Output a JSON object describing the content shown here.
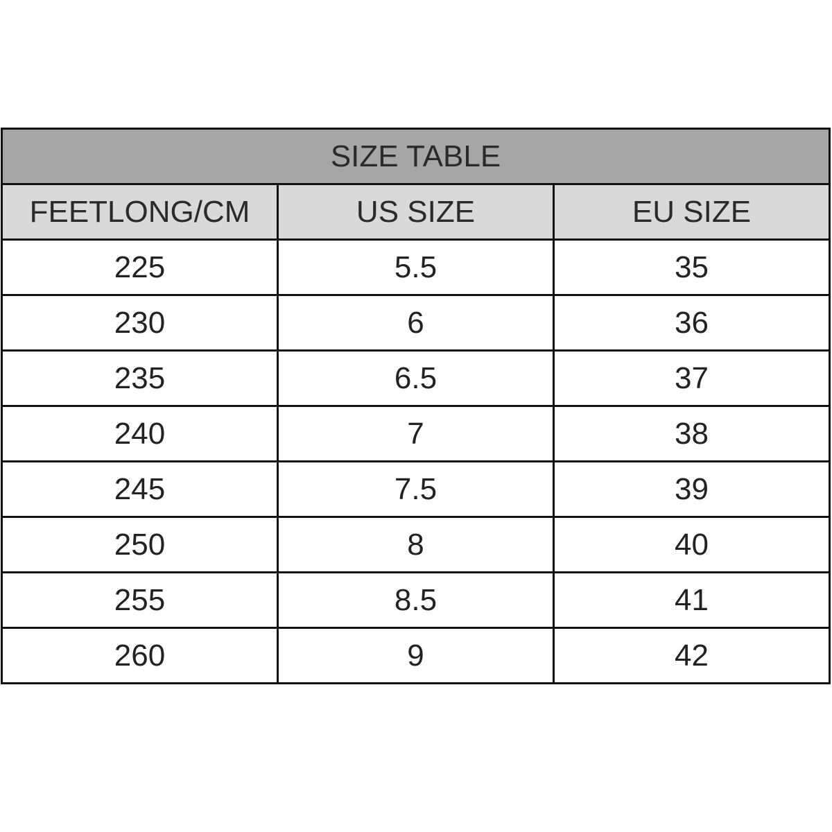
{
  "title": "SIZE TABLE",
  "columns": [
    "FEETLONG/CM",
    "US SIZE",
    "EU SIZE"
  ],
  "rows": [
    [
      "225",
      "5.5",
      "35"
    ],
    [
      "230",
      "6",
      "36"
    ],
    [
      "235",
      "6.5",
      "37"
    ],
    [
      "240",
      "7",
      "38"
    ],
    [
      "245",
      "7.5",
      "39"
    ],
    [
      "250",
      "8",
      "40"
    ],
    [
      "255",
      "8.5",
      "41"
    ],
    [
      "260",
      "9",
      "42"
    ]
  ],
  "colors": {
    "title_bg": "#a6a6a6",
    "header_bg": "#d9d9d9",
    "border": "#111111"
  }
}
